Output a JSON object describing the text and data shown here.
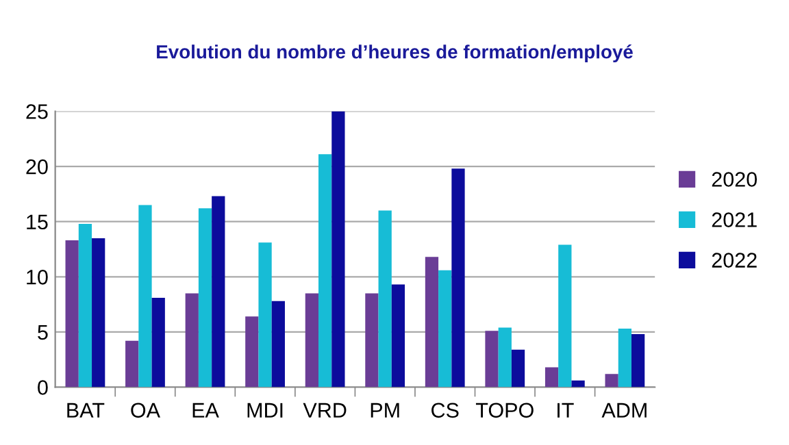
{
  "chart_data": {
    "type": "bar",
    "title": "Evolution du nombre d’heures de formation/employé",
    "categories": [
      "BAT",
      "OA",
      "EA",
      "MDI",
      "VRD",
      "PM",
      "CS",
      "TOPO",
      "IT",
      "ADM"
    ],
    "series": [
      {
        "name": "2020",
        "color": "#6a3d96",
        "values": [
          13.3,
          4.2,
          8.5,
          6.4,
          8.5,
          8.5,
          11.8,
          5.1,
          1.8,
          1.2
        ]
      },
      {
        "name": "2021",
        "color": "#17bcd6",
        "values": [
          14.8,
          16.5,
          16.2,
          13.1,
          21.1,
          16.0,
          10.6,
          5.4,
          12.9,
          5.3
        ]
      },
      {
        "name": "2022",
        "color": "#0c0c9c",
        "values": [
          13.5,
          8.1,
          17.3,
          7.8,
          25,
          9.3,
          19.8,
          3.4,
          0.6,
          4.8
        ]
      }
    ],
    "ylim": [
      0,
      25
    ],
    "yticks": [
      0,
      5,
      10,
      15,
      20,
      25
    ],
    "grid": "y",
    "legend": "right"
  }
}
